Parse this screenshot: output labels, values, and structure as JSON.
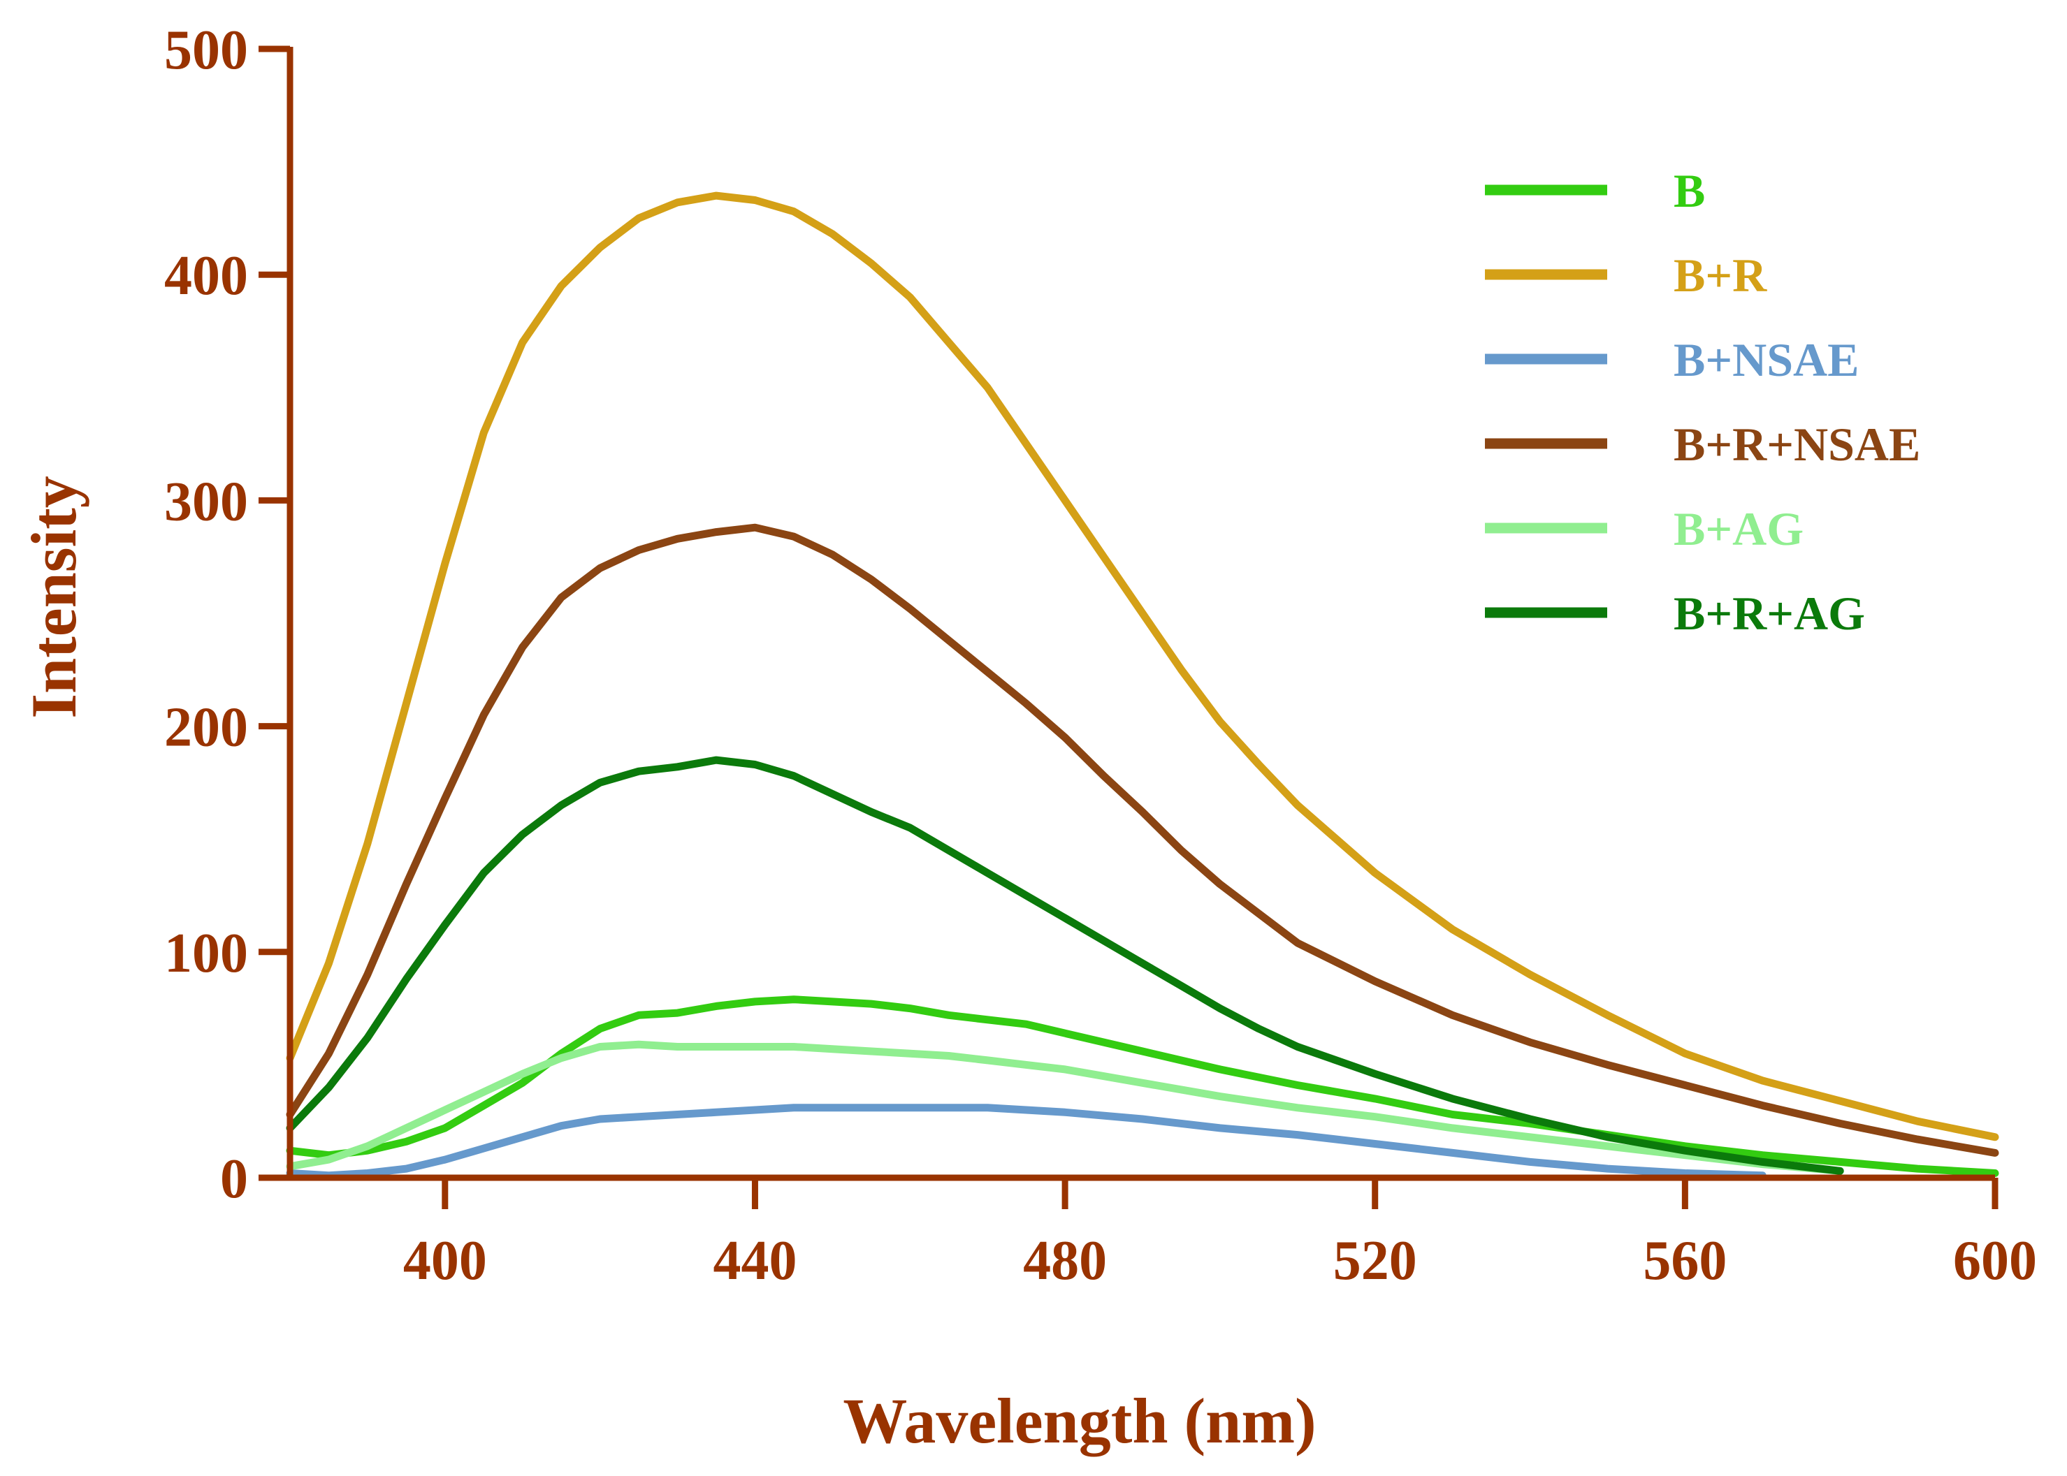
{
  "chart_data": {
    "type": "line",
    "title": "",
    "xlabel": "Wavelength (nm)",
    "ylabel": "Intensity",
    "xlim": [
      380,
      600
    ],
    "ylim": [
      0,
      500
    ],
    "xticks": [
      "400",
      "440",
      "480",
      "520",
      "560",
      "600"
    ],
    "yticks": [
      "0",
      "100",
      "200",
      "300",
      "400",
      "500"
    ],
    "grid": false,
    "legend_position": "top-right",
    "axis_color": "#993300",
    "series": [
      {
        "name": "B",
        "color": "#33cc11",
        "x": [
          380,
          385,
          390,
          395,
          400,
          405,
          410,
          415,
          420,
          425,
          430,
          435,
          440,
          445,
          450,
          455,
          460,
          465,
          470,
          475,
          480,
          490,
          500,
          510,
          520,
          530,
          540,
          550,
          560,
          570,
          580,
          590,
          600
        ],
        "y": [
          12,
          10,
          12,
          16,
          22,
          32,
          42,
          55,
          66,
          72,
          73,
          76,
          78,
          79,
          78,
          77,
          75,
          72,
          70,
          68,
          64,
          56,
          48,
          41,
          35,
          28,
          24,
          19,
          14,
          10,
          7,
          4,
          2
        ]
      },
      {
        "name": "B+R",
        "color": "#d4a017",
        "x": [
          380,
          385,
          390,
          395,
          400,
          405,
          410,
          415,
          420,
          425,
          430,
          435,
          440,
          445,
          450,
          455,
          460,
          465,
          470,
          475,
          480,
          485,
          490,
          495,
          500,
          505,
          510,
          515,
          520,
          530,
          540,
          550,
          560,
          570,
          580,
          590,
          600
        ],
        "y": [
          53,
          95,
          148,
          210,
          272,
          330,
          370,
          395,
          412,
          425,
          432,
          435,
          433,
          428,
          418,
          405,
          390,
          370,
          350,
          325,
          300,
          275,
          250,
          225,
          202,
          183,
          165,
          150,
          135,
          110,
          90,
          72,
          55,
          43,
          34,
          25,
          18
        ]
      },
      {
        "name": "B+NSAE",
        "color": "#6699cc",
        "x": [
          380,
          385,
          390,
          395,
          400,
          405,
          410,
          415,
          420,
          425,
          430,
          435,
          440,
          445,
          450,
          455,
          460,
          465,
          470,
          475,
          480,
          490,
          500,
          510,
          520,
          530,
          540,
          550,
          560,
          570
        ],
        "y": [
          2,
          1,
          2,
          4,
          8,
          13,
          18,
          23,
          26,
          27,
          28,
          29,
          30,
          31,
          31,
          31,
          31,
          31,
          31,
          30,
          29,
          26,
          22,
          19,
          15,
          11,
          7,
          4,
          2,
          1
        ]
      },
      {
        "name": "B+R+NSAE",
        "color": "#8b4513",
        "x": [
          380,
          385,
          390,
          395,
          400,
          405,
          410,
          415,
          420,
          425,
          430,
          435,
          440,
          445,
          450,
          455,
          460,
          465,
          470,
          475,
          480,
          485,
          490,
          495,
          500,
          505,
          510,
          520,
          530,
          540,
          550,
          560,
          570,
          580,
          590,
          600
        ],
        "y": [
          28,
          55,
          90,
          130,
          168,
          205,
          235,
          257,
          270,
          278,
          283,
          286,
          288,
          284,
          276,
          265,
          252,
          238,
          224,
          210,
          195,
          178,
          162,
          145,
          130,
          117,
          104,
          87,
          72,
          60,
          50,
          41,
          32,
          24,
          17,
          11
        ]
      },
      {
        "name": "B+AG",
        "color": "#90ee90",
        "x": [
          380,
          385,
          390,
          395,
          400,
          405,
          410,
          415,
          420,
          425,
          430,
          435,
          440,
          445,
          450,
          455,
          460,
          465,
          470,
          475,
          480,
          490,
          500,
          510,
          520,
          530,
          540,
          550,
          560,
          570,
          580
        ],
        "y": [
          5,
          8,
          14,
          22,
          30,
          38,
          46,
          53,
          58,
          59,
          58,
          58,
          58,
          58,
          57,
          56,
          55,
          54,
          52,
          50,
          48,
          42,
          36,
          31,
          27,
          22,
          18,
          14,
          10,
          6,
          3
        ]
      },
      {
        "name": "B+R+AG",
        "color": "#0b7a0b",
        "x": [
          380,
          385,
          390,
          395,
          400,
          405,
          410,
          415,
          420,
          425,
          430,
          435,
          440,
          445,
          450,
          455,
          460,
          465,
          470,
          475,
          480,
          485,
          490,
          495,
          500,
          505,
          510,
          520,
          530,
          540,
          550,
          560,
          570,
          580
        ],
        "y": [
          22,
          40,
          62,
          88,
          112,
          135,
          152,
          165,
          175,
          180,
          182,
          185,
          183,
          178,
          170,
          162,
          155,
          145,
          135,
          125,
          115,
          105,
          95,
          85,
          75,
          66,
          58,
          46,
          35,
          26,
          18,
          12,
          7,
          3
        ]
      }
    ]
  }
}
